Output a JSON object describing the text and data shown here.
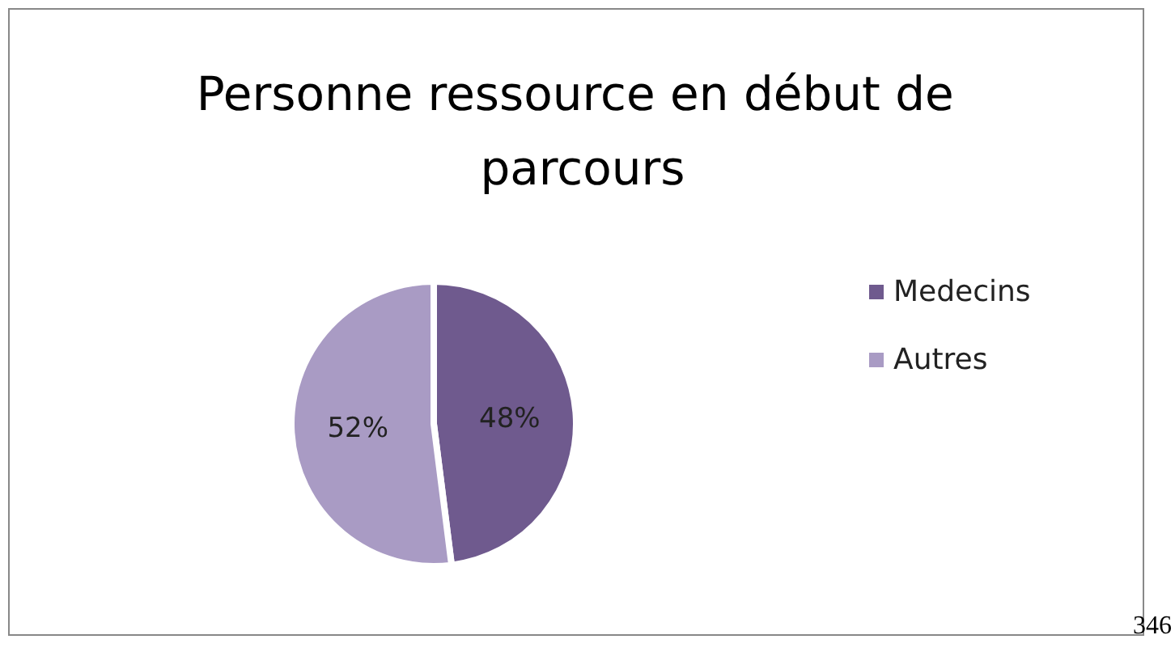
{
  "chart_data": {
    "type": "pie",
    "title": "Personne ressource en début de parcours",
    "categories": [
      "Medecins",
      "Autres"
    ],
    "values": [
      48,
      52
    ],
    "colors": [
      "#6f5a8e",
      "#a99bc4"
    ],
    "value_labels": [
      "48%",
      "52%"
    ],
    "legend": "right",
    "annotations": [
      "346"
    ]
  }
}
